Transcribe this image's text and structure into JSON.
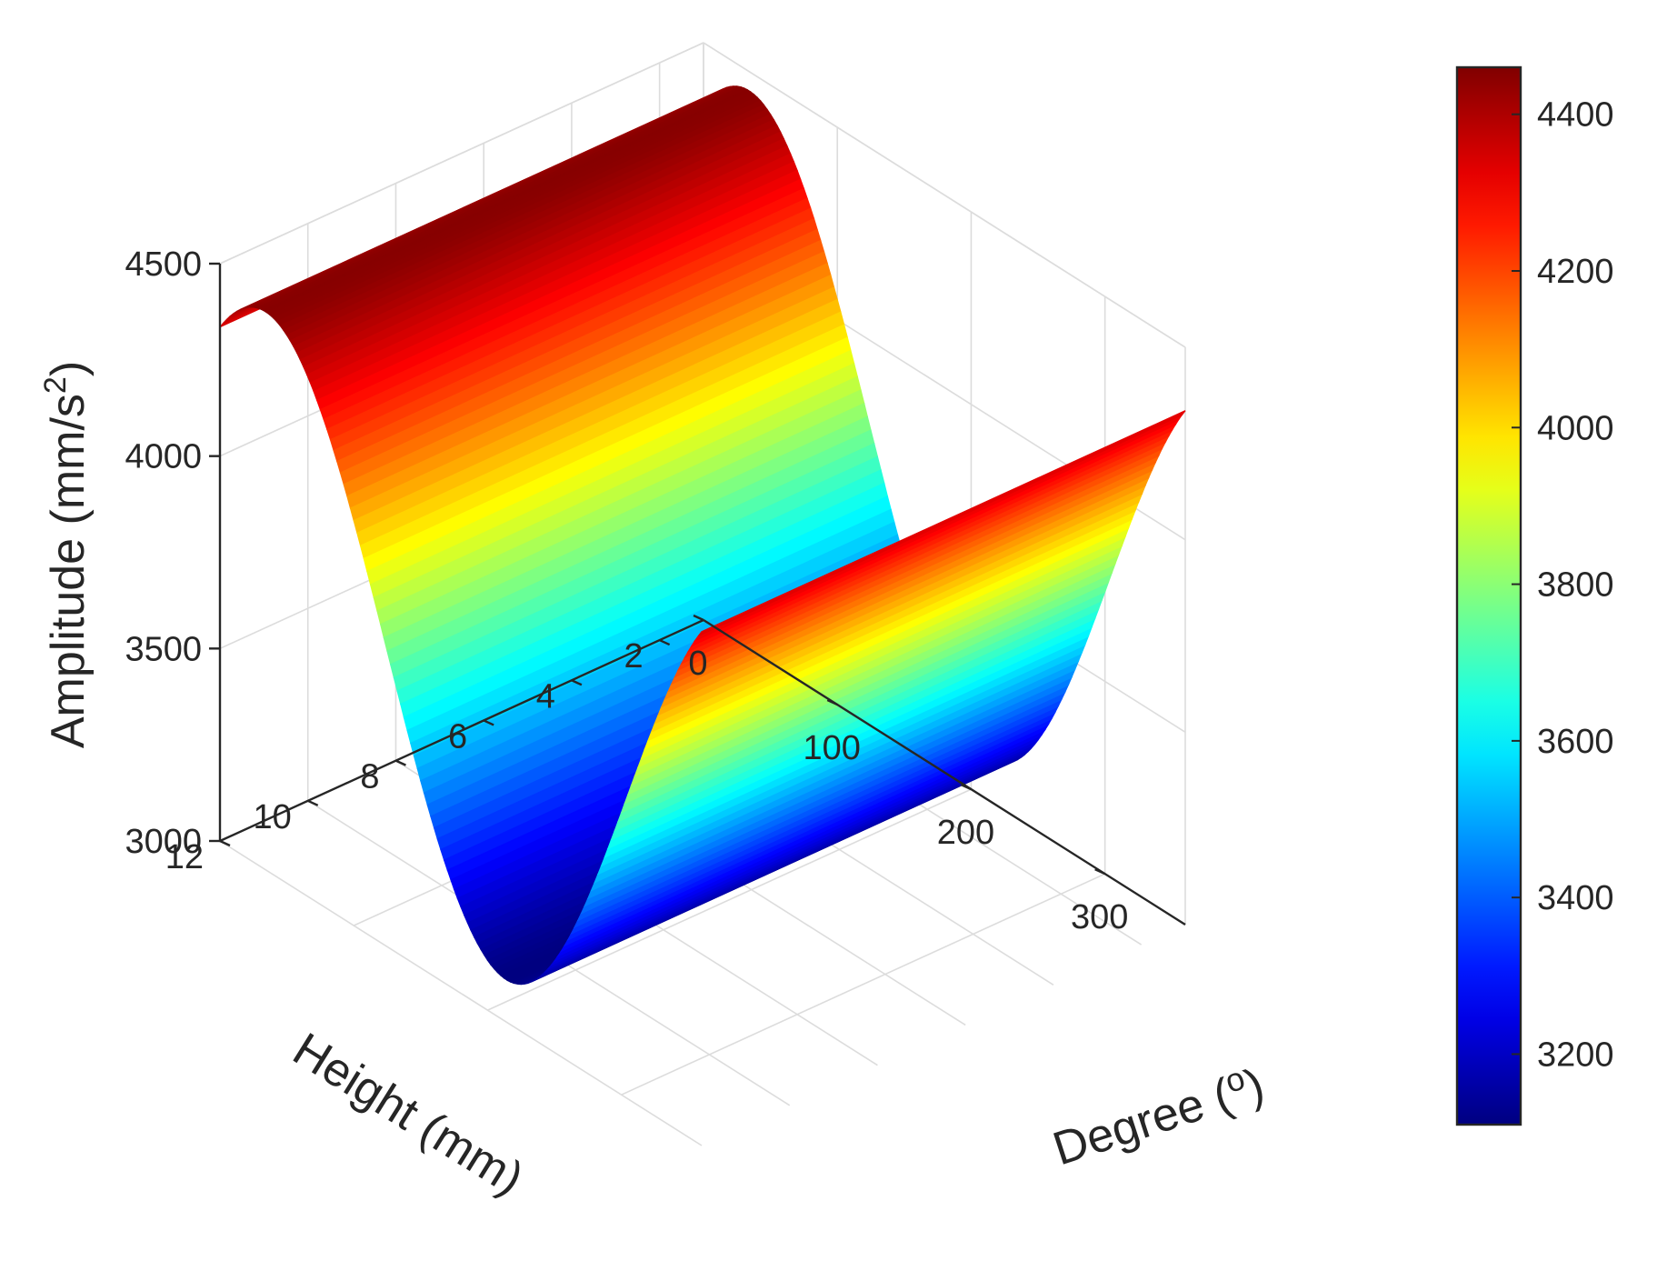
{
  "chart_data": {
    "type": "surface",
    "title": "",
    "colormap": "jet",
    "x": {
      "label": "Degree (o)",
      "label_text": "Degree (",
      "label_unit": "o",
      "label_close": ")",
      "range": [
        0,
        360
      ],
      "ticks": [
        0,
        100,
        200,
        300
      ],
      "tick_labels": [
        "0",
        "100",
        "200",
        "300"
      ]
    },
    "y": {
      "label": "Height (mm)",
      "range": [
        1,
        12
      ],
      "ticks": [
        2,
        4,
        6,
        8,
        10,
        12
      ],
      "tick_labels": [
        "2",
        "4",
        "6",
        "8",
        "10",
        "12"
      ]
    },
    "z": {
      "label": "Amplitude (mm/s2)",
      "label_text": "Amplitude (mm/s",
      "label_sup": "2",
      "label_close": ")",
      "range": [
        3000,
        4500
      ],
      "ticks": [
        3000,
        3500,
        4000,
        4500
      ],
      "tick_labels": [
        "3000",
        "3500",
        "4000",
        "4500"
      ]
    },
    "surface": {
      "function": "z = mean + amplitude * cos(degree - phase)",
      "mean": 3780,
      "amplitude": 670,
      "phase_deg": 34,
      "degree_range": [
        0,
        360
      ],
      "height_range": [
        1,
        12
      ],
      "min_value": 3110,
      "max_value": 4450
    },
    "colorbar": {
      "range": [
        3110,
        4460
      ],
      "ticks": [
        3200,
        3400,
        3600,
        3800,
        4000,
        4200,
        4400
      ],
      "tick_labels": [
        "3200",
        "3400",
        "3600",
        "3800",
        "4000",
        "4200",
        "4400"
      ]
    },
    "grid": true
  }
}
